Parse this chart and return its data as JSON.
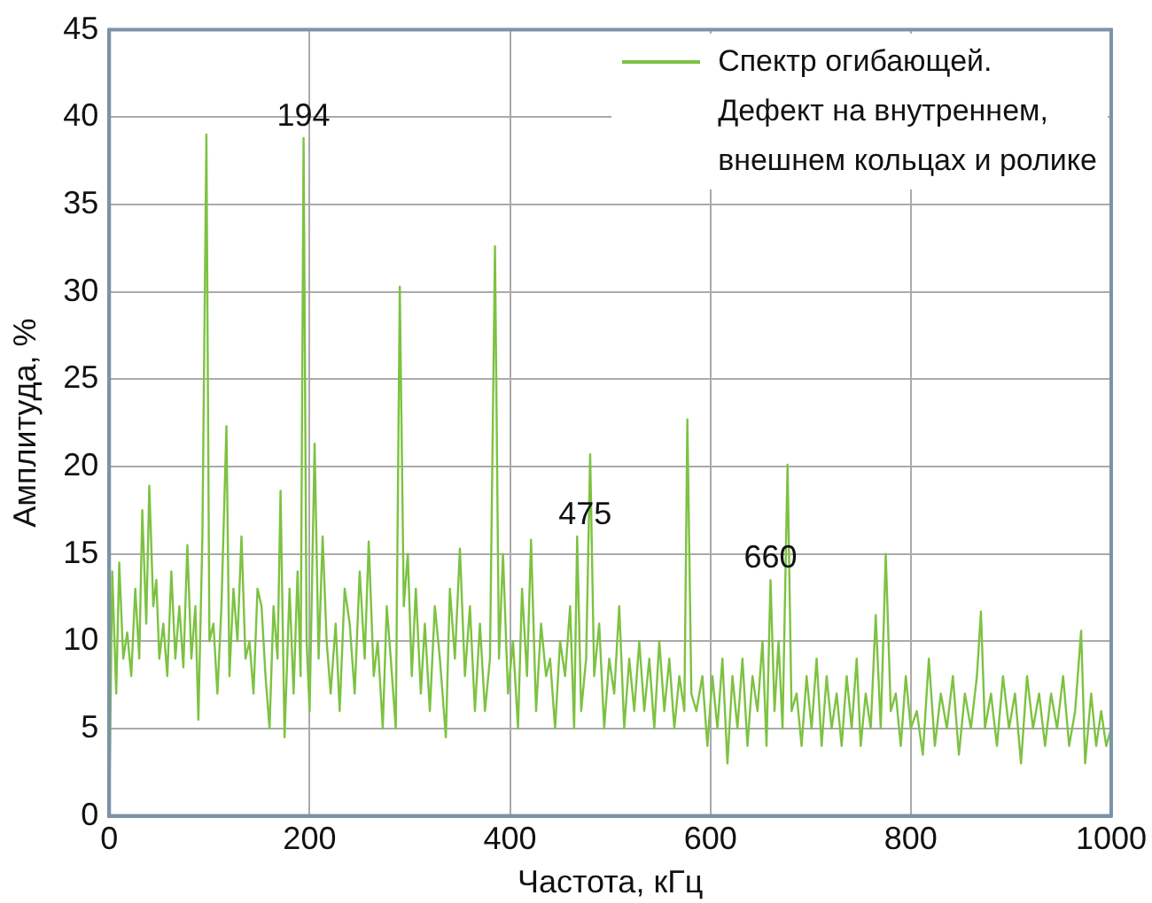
{
  "chart_data": {
    "type": "line",
    "xlabel": "Частота, кГц",
    "ylabel": "Амплитуда, %",
    "xlim": [
      0,
      1000
    ],
    "xticks": [
      0,
      200,
      400,
      600,
      800,
      1000
    ],
    "ylim": [
      0,
      45
    ],
    "yticks": [
      0,
      5,
      10,
      15,
      20,
      25,
      30,
      35,
      40,
      45
    ],
    "grid": true,
    "legend": "top right",
    "marker": "none",
    "annotations": [
      {
        "text": "194",
        "x": 194,
        "y": 38.8
      },
      {
        "text": "475",
        "x": 475,
        "y": 16
      },
      {
        "text": "660",
        "x": 660,
        "y": 13.5
      }
    ],
    "series": [
      {
        "name": "Спектр огибающей.\nДефект на внутреннем,\nвнешнем кольцах и ролике",
        "color": "#7dc242",
        "x": [
          0,
          3,
          7,
          10,
          14,
          18,
          22,
          26,
          30,
          33,
          37,
          40,
          44,
          47,
          50,
          54,
          58,
          62,
          66,
          70,
          74,
          78,
          82,
          86,
          89,
          93,
          97,
          100,
          104,
          108,
          112,
          117,
          120,
          124,
          128,
          132,
          136,
          140,
          144,
          148,
          152,
          156,
          160,
          164,
          168,
          171,
          175,
          180,
          184,
          188,
          191,
          194,
          197,
          200,
          205,
          209,
          213,
          217,
          221,
          226,
          230,
          235,
          240,
          245,
          250,
          255,
          259,
          264,
          268,
          273,
          277,
          281,
          286,
          290,
          294,
          298,
          302,
          306,
          311,
          315,
          320,
          325,
          330,
          336,
          340,
          345,
          350,
          355,
          360,
          365,
          370,
          375,
          380,
          385,
          389,
          393,
          398,
          403,
          408,
          412,
          417,
          421,
          426,
          431,
          436,
          440,
          445,
          450,
          455,
          460,
          464,
          467,
          471,
          476,
          480,
          484,
          489,
          494,
          499,
          504,
          509,
          514,
          519,
          524,
          529,
          534,
          539,
          544,
          549,
          554,
          559,
          564,
          569,
          574,
          577,
          581,
          586,
          592,
          597,
          602,
          607,
          612,
          617,
          622,
          627,
          632,
          637,
          642,
          647,
          652,
          656,
          660,
          664,
          668,
          672,
          677,
          681,
          686,
          691,
          696,
          701,
          706,
          711,
          716,
          721,
          726,
          731,
          736,
          741,
          746,
          750,
          755,
          760,
          765,
          770,
          775,
          780,
          785,
          790,
          795,
          800,
          806,
          812,
          818,
          824,
          830,
          836,
          842,
          848,
          854,
          860,
          866,
          870,
          874,
          880,
          886,
          892,
          898,
          904,
          910,
          916,
          922,
          928,
          934,
          940,
          946,
          952,
          958,
          964,
          970,
          974,
          980,
          985,
          990,
          995,
          1000
        ],
        "values": [
          0,
          14,
          7,
          14.5,
          9,
          10.5,
          8,
          13,
          9,
          17.5,
          11,
          18.9,
          12,
          13.5,
          9,
          11,
          8,
          14,
          9,
          12,
          8.5,
          15.5,
          9,
          12,
          5.5,
          16,
          39,
          10,
          11,
          7,
          12,
          22.3,
          8,
          13,
          10,
          16,
          9,
          10,
          7,
          13,
          12,
          8,
          5,
          12,
          9,
          18.6,
          4.5,
          13,
          7,
          14,
          8,
          38.8,
          10,
          6,
          21.3,
          9,
          16,
          10,
          7,
          11,
          6,
          13,
          11,
          7,
          14,
          9,
          15.7,
          8,
          10,
          5,
          12,
          9,
          5,
          30.3,
          12,
          15,
          8,
          13,
          7,
          11,
          6,
          12,
          9,
          4.5,
          13,
          9,
          15.3,
          8,
          12,
          6,
          11,
          6,
          9,
          32.6,
          9,
          15,
          7,
          10,
          5,
          13,
          8,
          15.8,
          6,
          11,
          8,
          9,
          5,
          10,
          8,
          12,
          5,
          16,
          6,
          9,
          20.7,
          8,
          11,
          5,
          9,
          7,
          12,
          5,
          9,
          6,
          10,
          6,
          9,
          5,
          10,
          6,
          9,
          5,
          8,
          6,
          22.7,
          7,
          6,
          8,
          4,
          8,
          5,
          9,
          3,
          8,
          5,
          9,
          4,
          8,
          6,
          10,
          4,
          13.5,
          6,
          10,
          5,
          20.1,
          6,
          7,
          4,
          8,
          5,
          9,
          4,
          8,
          5,
          7,
          4,
          8,
          5,
          9,
          4,
          7,
          5,
          11.5,
          5,
          15,
          6,
          7,
          4,
          8,
          5,
          6,
          3.5,
          9,
          4,
          7,
          5,
          8,
          3.5,
          7,
          5,
          8,
          11.7,
          5,
          7,
          4,
          8,
          5,
          7,
          3,
          8,
          5,
          7,
          4,
          7,
          5,
          8,
          4,
          6,
          10.6,
          3,
          7,
          4,
          6,
          4,
          5
        ]
      }
    ]
  }
}
